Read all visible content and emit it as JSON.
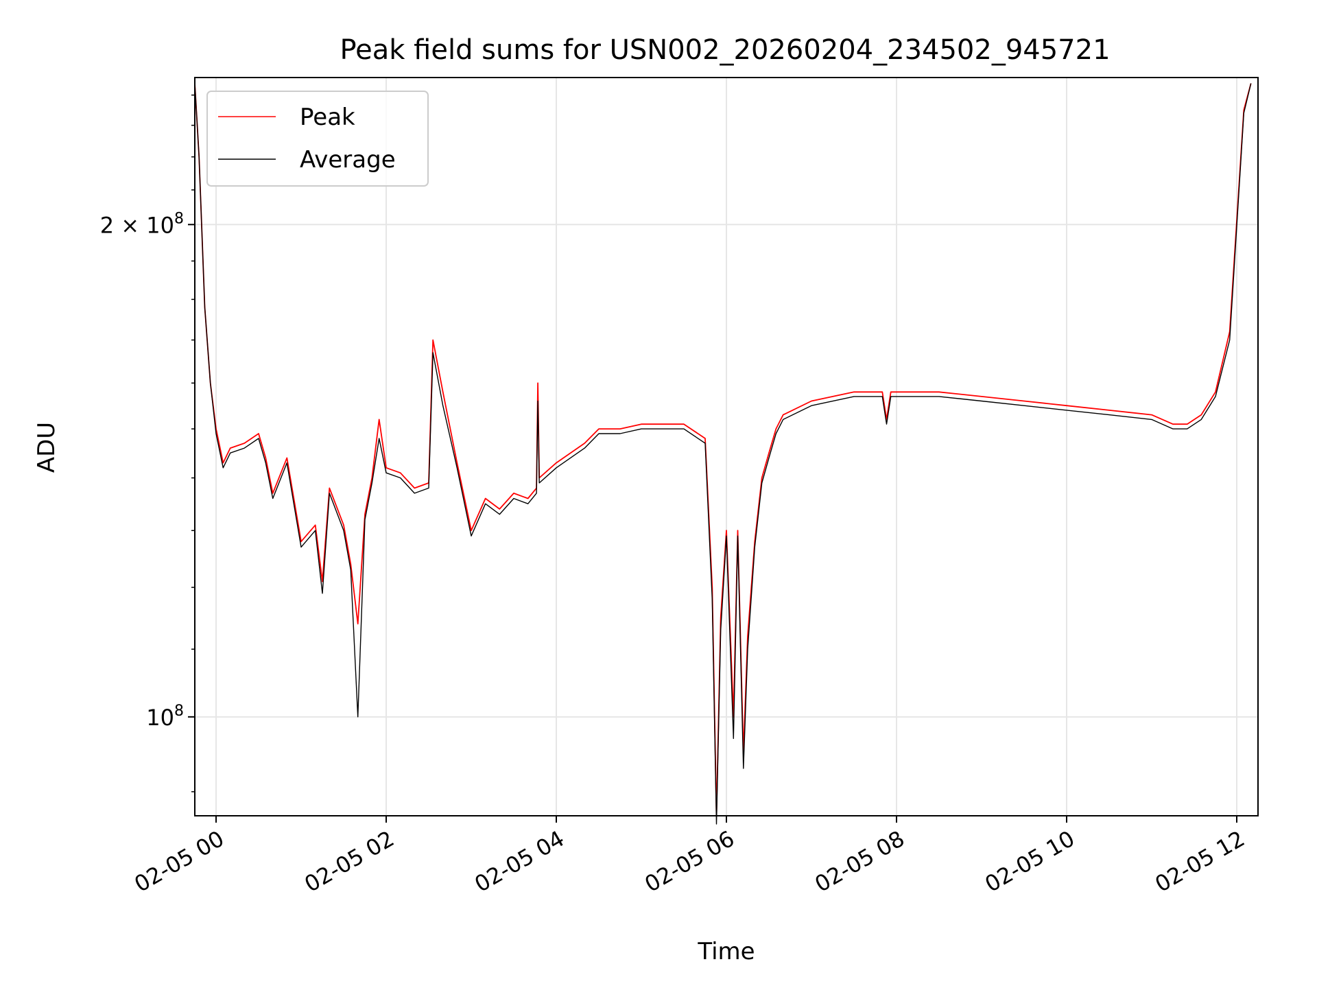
{
  "chart_data": {
    "type": "line",
    "title": "Peak field sums for USN002_20260204_234502_945721",
    "xlabel": "Time",
    "ylabel": "ADU",
    "yscale": "log",
    "ylim": [
      87000000,
      246000000
    ],
    "xlim": [
      "2026-02-04 23:45",
      "2026-02-05 12:15"
    ],
    "grid": true,
    "legend": "top-left",
    "x_ticks": [
      {
        "value": "2026-02-05 00:00",
        "label": "02-05 00"
      },
      {
        "value": "2026-02-05 02:00",
        "label": "02-05 02"
      },
      {
        "value": "2026-02-05 04:00",
        "label": "02-05 04"
      },
      {
        "value": "2026-02-05 06:00",
        "label": "02-05 06"
      },
      {
        "value": "2026-02-05 08:00",
        "label": "02-05 08"
      },
      {
        "value": "2026-02-05 10:00",
        "label": "02-05 10"
      },
      {
        "value": "2026-02-05 12:00",
        "label": "02-05 12"
      }
    ],
    "y_ticks": [
      {
        "value": 100000000,
        "base": "10",
        "exp": "8",
        "mantissa": ""
      },
      {
        "value": 200000000,
        "base": "10",
        "exp": "8",
        "mantissa": "2 × "
      }
    ],
    "series": [
      {
        "name": "Peak",
        "color": "#ff0000",
        "points": [
          [
            "2026-02-04 23:45",
            244000000
          ],
          [
            "2026-02-04 23:48",
            220000000
          ],
          [
            "2026-02-04 23:52",
            178000000
          ],
          [
            "2026-02-04 23:56",
            160000000
          ],
          [
            "2026-02-05 00:00",
            150000000
          ],
          [
            "2026-02-05 00:05",
            143000000
          ],
          [
            "2026-02-05 00:10",
            146000000
          ],
          [
            "2026-02-05 00:20",
            147000000
          ],
          [
            "2026-02-05 00:30",
            149000000
          ],
          [
            "2026-02-05 00:35",
            144000000
          ],
          [
            "2026-02-05 00:40",
            137000000
          ],
          [
            "2026-02-05 00:50",
            144000000
          ],
          [
            "2026-02-05 01:00",
            128000000
          ],
          [
            "2026-02-05 01:10",
            131000000
          ],
          [
            "2026-02-05 01:15",
            121000000
          ],
          [
            "2026-02-05 01:20",
            138000000
          ],
          [
            "2026-02-05 01:30",
            131000000
          ],
          [
            "2026-02-05 01:35",
            124000000
          ],
          [
            "2026-02-05 01:40",
            114000000
          ],
          [
            "2026-02-05 01:45",
            133000000
          ],
          [
            "2026-02-05 01:50",
            140000000
          ],
          [
            "2026-02-05 01:55",
            152000000
          ],
          [
            "2026-02-05 02:00",
            142000000
          ],
          [
            "2026-02-05 02:10",
            141000000
          ],
          [
            "2026-02-05 02:20",
            138000000
          ],
          [
            "2026-02-05 02:30",
            139000000
          ],
          [
            "2026-02-05 02:33",
            170000000
          ],
          [
            "2026-02-05 02:40",
            158000000
          ],
          [
            "2026-02-05 02:50",
            143000000
          ],
          [
            "2026-02-05 03:00",
            130000000
          ],
          [
            "2026-02-05 03:10",
            136000000
          ],
          [
            "2026-02-05 03:20",
            134000000
          ],
          [
            "2026-02-05 03:30",
            137000000
          ],
          [
            "2026-02-05 03:40",
            136000000
          ],
          [
            "2026-02-05 03:46",
            138000000
          ],
          [
            "2026-02-05 03:47",
            160000000
          ],
          [
            "2026-02-05 03:48",
            140000000
          ],
          [
            "2026-02-05 04:00",
            143000000
          ],
          [
            "2026-02-05 04:20",
            147000000
          ],
          [
            "2026-02-05 04:30",
            150000000
          ],
          [
            "2026-02-05 04:45",
            150000000
          ],
          [
            "2026-02-05 05:00",
            151000000
          ],
          [
            "2026-02-05 05:30",
            151000000
          ],
          [
            "2026-02-05 05:45",
            148000000
          ],
          [
            "2026-02-05 05:50",
            120000000
          ],
          [
            "2026-02-05 05:53",
            87000000
          ],
          [
            "2026-02-05 05:56",
            115000000
          ],
          [
            "2026-02-05 06:00",
            130000000
          ],
          [
            "2026-02-05 06:05",
            100000000
          ],
          [
            "2026-02-05 06:08",
            130000000
          ],
          [
            "2026-02-05 06:12",
            95000000
          ],
          [
            "2026-02-05 06:15",
            112000000
          ],
          [
            "2026-02-05 06:20",
            128000000
          ],
          [
            "2026-02-05 06:25",
            140000000
          ],
          [
            "2026-02-05 06:30",
            145000000
          ],
          [
            "2026-02-05 06:35",
            150000000
          ],
          [
            "2026-02-05 06:40",
            153000000
          ],
          [
            "2026-02-05 07:00",
            156000000
          ],
          [
            "2026-02-05 07:30",
            158000000
          ],
          [
            "2026-02-05 07:50",
            158000000
          ],
          [
            "2026-02-05 07:53",
            152000000
          ],
          [
            "2026-02-05 07:56",
            158000000
          ],
          [
            "2026-02-05 08:30",
            158000000
          ],
          [
            "2026-02-05 09:00",
            157000000
          ],
          [
            "2026-02-05 09:30",
            156000000
          ],
          [
            "2026-02-05 10:00",
            155000000
          ],
          [
            "2026-02-05 10:30",
            154000000
          ],
          [
            "2026-02-05 11:00",
            153000000
          ],
          [
            "2026-02-05 11:15",
            151000000
          ],
          [
            "2026-02-05 11:25",
            151000000
          ],
          [
            "2026-02-05 11:35",
            153000000
          ],
          [
            "2026-02-05 11:45",
            158000000
          ],
          [
            "2026-02-05 11:55",
            172000000
          ],
          [
            "2026-02-05 12:05",
            235000000
          ],
          [
            "2026-02-05 12:10",
            244000000
          ]
        ]
      },
      {
        "name": "Average",
        "color": "#000000",
        "points": [
          [
            "2026-02-04 23:45",
            244000000
          ],
          [
            "2026-02-04 23:48",
            220000000
          ],
          [
            "2026-02-04 23:52",
            178000000
          ],
          [
            "2026-02-04 23:56",
            160000000
          ],
          [
            "2026-02-05 00:00",
            149000000
          ],
          [
            "2026-02-05 00:05",
            142000000
          ],
          [
            "2026-02-05 00:10",
            145000000
          ],
          [
            "2026-02-05 00:20",
            146000000
          ],
          [
            "2026-02-05 00:30",
            148000000
          ],
          [
            "2026-02-05 00:35",
            143000000
          ],
          [
            "2026-02-05 00:40",
            136000000
          ],
          [
            "2026-02-05 00:50",
            143000000
          ],
          [
            "2026-02-05 01:00",
            127000000
          ],
          [
            "2026-02-05 01:10",
            130000000
          ],
          [
            "2026-02-05 01:15",
            119000000
          ],
          [
            "2026-02-05 01:20",
            137000000
          ],
          [
            "2026-02-05 01:30",
            130000000
          ],
          [
            "2026-02-05 01:35",
            123000000
          ],
          [
            "2026-02-05 01:40",
            100000000
          ],
          [
            "2026-02-05 01:45",
            132000000
          ],
          [
            "2026-02-05 01:50",
            139000000
          ],
          [
            "2026-02-05 01:55",
            148000000
          ],
          [
            "2026-02-05 02:00",
            141000000
          ],
          [
            "2026-02-05 02:10",
            140000000
          ],
          [
            "2026-02-05 02:20",
            137000000
          ],
          [
            "2026-02-05 02:30",
            138000000
          ],
          [
            "2026-02-05 02:33",
            167000000
          ],
          [
            "2026-02-05 02:40",
            155000000
          ],
          [
            "2026-02-05 02:50",
            142000000
          ],
          [
            "2026-02-05 03:00",
            129000000
          ],
          [
            "2026-02-05 03:10",
            135000000
          ],
          [
            "2026-02-05 03:20",
            133000000
          ],
          [
            "2026-02-05 03:30",
            136000000
          ],
          [
            "2026-02-05 03:40",
            135000000
          ],
          [
            "2026-02-05 03:46",
            137000000
          ],
          [
            "2026-02-05 03:47",
            156000000
          ],
          [
            "2026-02-05 03:48",
            139000000
          ],
          [
            "2026-02-05 04:00",
            142000000
          ],
          [
            "2026-02-05 04:20",
            146000000
          ],
          [
            "2026-02-05 04:30",
            149000000
          ],
          [
            "2026-02-05 04:45",
            149000000
          ],
          [
            "2026-02-05 05:00",
            150000000
          ],
          [
            "2026-02-05 05:30",
            150000000
          ],
          [
            "2026-02-05 05:45",
            147000000
          ],
          [
            "2026-02-05 05:50",
            118000000
          ],
          [
            "2026-02-05 05:53",
            86000000
          ],
          [
            "2026-02-05 05:56",
            113000000
          ],
          [
            "2026-02-05 06:00",
            129000000
          ],
          [
            "2026-02-05 06:05",
            97000000
          ],
          [
            "2026-02-05 06:08",
            129000000
          ],
          [
            "2026-02-05 06:12",
            93000000
          ],
          [
            "2026-02-05 06:15",
            110000000
          ],
          [
            "2026-02-05 06:20",
            127000000
          ],
          [
            "2026-02-05 06:25",
            139000000
          ],
          [
            "2026-02-05 06:30",
            144000000
          ],
          [
            "2026-02-05 06:35",
            149000000
          ],
          [
            "2026-02-05 06:40",
            152000000
          ],
          [
            "2026-02-05 07:00",
            155000000
          ],
          [
            "2026-02-05 07:30",
            157000000
          ],
          [
            "2026-02-05 07:50",
            157000000
          ],
          [
            "2026-02-05 07:53",
            151000000
          ],
          [
            "2026-02-05 07:56",
            157000000
          ],
          [
            "2026-02-05 08:30",
            157000000
          ],
          [
            "2026-02-05 09:00",
            156000000
          ],
          [
            "2026-02-05 09:30",
            155000000
          ],
          [
            "2026-02-05 10:00",
            154000000
          ],
          [
            "2026-02-05 10:30",
            153000000
          ],
          [
            "2026-02-05 11:00",
            152000000
          ],
          [
            "2026-02-05 11:15",
            150000000
          ],
          [
            "2026-02-05 11:25",
            150000000
          ],
          [
            "2026-02-05 11:35",
            152000000
          ],
          [
            "2026-02-05 11:45",
            157000000
          ],
          [
            "2026-02-05 11:55",
            170000000
          ],
          [
            "2026-02-05 12:05",
            234000000
          ],
          [
            "2026-02-05 12:10",
            244000000
          ]
        ]
      }
    ]
  }
}
